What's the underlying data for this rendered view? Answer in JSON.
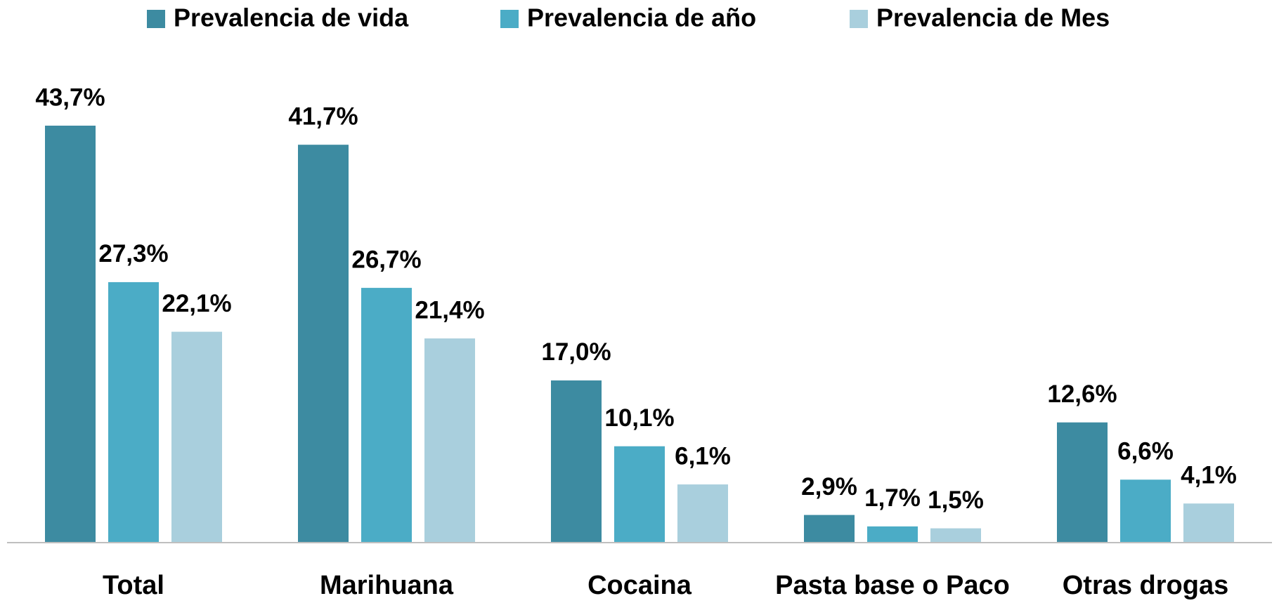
{
  "chart_data": {
    "type": "bar",
    "categories": [
      "Total",
      "Marihuana",
      "Cocaina",
      "Pasta base o Paco",
      "Otras drogas"
    ],
    "series": [
      {
        "name": "Prevalencia de vida",
        "color": "#3d8ba1",
        "values": [
          43.7,
          41.7,
          17.0,
          2.9,
          12.6
        ],
        "value_labels": [
          "43,7%",
          "41,7%",
          "17,0%",
          "2,9%",
          "12,6%"
        ]
      },
      {
        "name": "Prevalencia de año",
        "color": "#4bacc6",
        "values": [
          27.3,
          26.7,
          10.1,
          1.7,
          6.6
        ],
        "value_labels": [
          "27,3%",
          "26,7%",
          "10,1%",
          "1,7%",
          "6,6%"
        ]
      },
      {
        "name": "Prevalencia de Mes",
        "color": "#a9cfdd",
        "values": [
          22.1,
          21.4,
          6.1,
          1.5,
          4.1
        ],
        "value_labels": [
          "22,1%",
          "21,4%",
          "6,1%",
          "1,5%",
          "4,1%"
        ]
      }
    ],
    "legend": "top"
  }
}
